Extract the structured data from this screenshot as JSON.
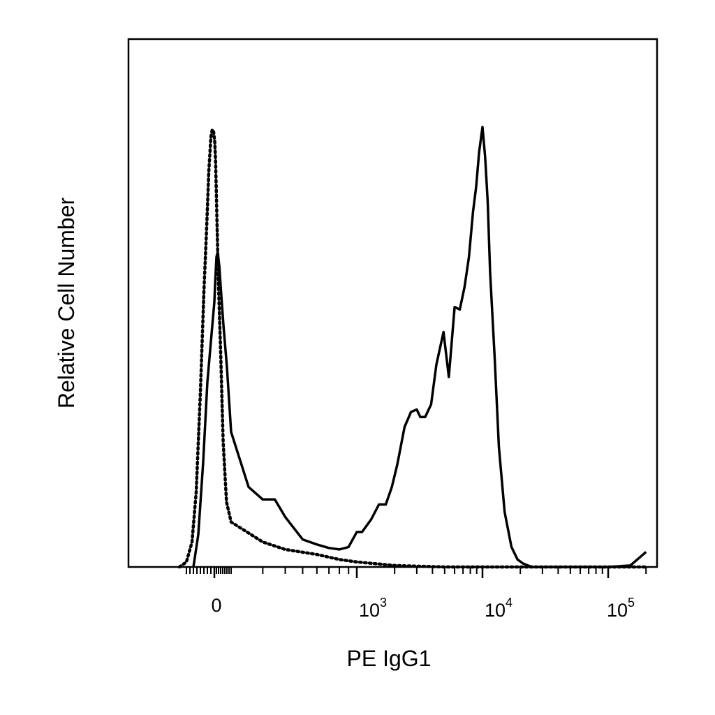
{
  "chart_data": {
    "type": "line",
    "xlabel": "PE IgG1",
    "ylabel": "Relative Cell Number",
    "x_scale": "biexponential",
    "xlim": [
      -250,
      200000
    ],
    "ylim": [
      0,
      100
    ],
    "grid": false,
    "x_ticks": [
      {
        "value": 0,
        "label": "0"
      },
      {
        "value": 1000,
        "label": "10",
        "exp": "3"
      },
      {
        "value": 10000,
        "label": "10",
        "exp": "4"
      },
      {
        "value": 100000,
        "label": "10",
        "exp": "5"
      }
    ],
    "series": [
      {
        "style": "solid",
        "color": "#000000",
        "x": [
          -150,
          -115,
          -80,
          -50,
          -25,
          0,
          10,
          25,
          40,
          60,
          80,
          110,
          150,
          200,
          250,
          300,
          350,
          400,
          500,
          600,
          700,
          800,
          900,
          1000,
          1100,
          1300,
          1500,
          1700,
          1900,
          2100,
          2400,
          2700,
          3000,
          3200,
          3500,
          3900,
          4300,
          4900,
          5400,
          6000,
          6600,
          7200,
          7800,
          8400,
          8900,
          9400,
          10000,
          10500,
          11000,
          11500,
          12500,
          13500,
          15000,
          17000,
          19000,
          21000,
          23000,
          25000,
          30000,
          40000,
          60000,
          100000,
          150000,
          180000,
          200000
        ],
        "y": [
          0,
          6.5,
          21,
          37,
          45,
          53,
          57,
          62,
          63,
          60,
          55,
          48,
          40,
          27,
          16,
          13.5,
          13.5,
          10,
          5.5,
          4.5,
          3.8,
          3.5,
          4.0,
          7.0,
          7.0,
          9.5,
          12.5,
          12.5,
          16,
          20.5,
          28,
          31,
          31.5,
          30,
          30,
          32.5,
          40.5,
          47,
          38,
          52,
          51.5,
          56,
          62,
          71,
          76,
          83,
          88,
          82,
          73,
          59,
          42,
          24,
          11,
          4,
          1.5,
          0.7,
          0.3,
          0,
          0,
          0,
          0,
          0,
          0.3,
          2.0,
          3.0
        ]
      },
      {
        "style": "dotted",
        "color": "#000000",
        "x": [
          -250,
          -200,
          -160,
          -130,
          -100,
          -75,
          -55,
          -40,
          -25,
          -15,
          -5,
          5,
          15,
          30,
          50,
          75,
          105,
          145,
          200,
          300,
          400,
          600,
          800,
          1000,
          2000,
          5000,
          100000,
          200000
        ],
        "y": [
          0,
          1,
          5,
          15,
          35,
          55,
          68,
          79,
          86,
          87.5,
          87,
          85,
          81,
          70,
          56,
          43,
          25,
          13,
          9,
          5,
          3.5,
          2.5,
          1.5,
          1,
          0.3,
          0,
          0,
          0
        ]
      }
    ]
  }
}
